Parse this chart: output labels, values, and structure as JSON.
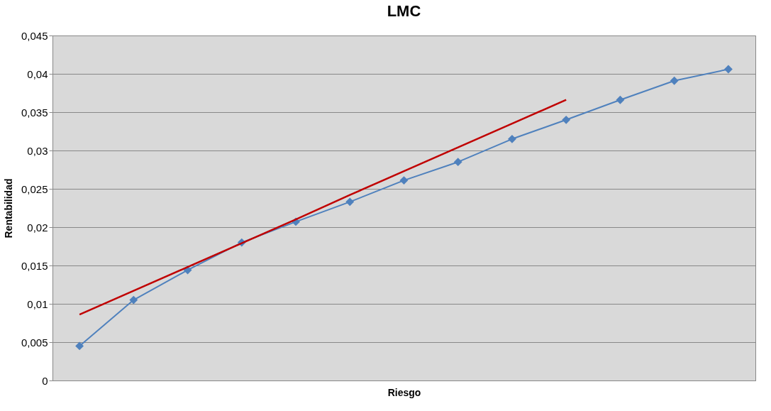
{
  "chart_data": {
    "type": "line",
    "title": "LMC",
    "xlabel": "Riesgo",
    "ylabel": "Rentabilidad",
    "categories": [
      null,
      null,
      null,
      null,
      null,
      null,
      null,
      null,
      null,
      null,
      null,
      null,
      null
    ],
    "series": [
      {
        "color": "#4f81bd",
        "marker": "diamond",
        "values": [
          0.0045,
          0.0105,
          0.0144,
          0.018,
          0.0207,
          0.0233,
          0.0261,
          0.0285,
          0.0315,
          0.034,
          0.0366,
          0.0391,
          0.0406
        ]
      },
      {
        "type": "line",
        "color": "#c00000",
        "marker": "none",
        "values": [
          0.0086,
          0.0117,
          0.0148,
          0.0179,
          0.021,
          0.0242,
          0.0273,
          0.0304,
          0.0335,
          0.0366,
          null,
          null,
          null
        ]
      }
    ],
    "ylim": [
      0,
      0.045
    ],
    "yticks": [
      0,
      {
        "value": 0.005,
        "label": "0,005"
      },
      {
        "value": 0.01,
        "label": "0,01"
      },
      {
        "value": 0.015,
        "label": "0,015"
      },
      {
        "value": 0.02,
        "label": "0,02"
      },
      {
        "value": 0.025,
        "label": "0,025"
      },
      {
        "value": 0.03,
        "label": "0,03"
      },
      {
        "value": 0.035,
        "label": "0,035"
      },
      {
        "value": 0.04,
        "label": "0,04"
      },
      {
        "value": 0.045,
        "label": "0,045"
      }
    ],
    "tick_labels": "y",
    "grid": "y",
    "legend": false
  }
}
